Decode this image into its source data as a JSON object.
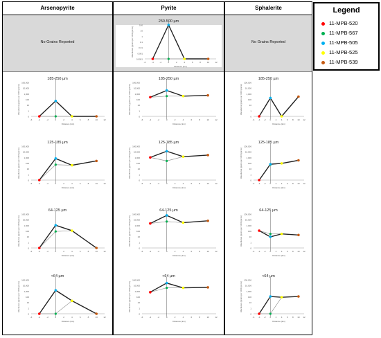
{
  "columns": [
    "Arsenopyrite",
    "Pyrite",
    "Sphalerite"
  ],
  "no_grains_text": "No Grains Reported",
  "legend": {
    "title": "Legend",
    "items": [
      {
        "label": "11-MPB-520",
        "color": "#ff0000"
      },
      {
        "label": "11-MPB-567",
        "color": "#00b050"
      },
      {
        "label": "11-MPB-505",
        "color": "#00b0f0"
      },
      {
        "label": "11-MPB-525",
        "color": "#ffff00"
      },
      {
        "label": "11-MPB-539",
        "color": "#c55a11"
      }
    ]
  },
  "axis": {
    "xlabel": "Distance (km)",
    "ylabel": "Abundance (grains per 1000 grams)",
    "xticks": [
      -6,
      -4,
      -2,
      0,
      2,
      4,
      6,
      8,
      10,
      12
    ],
    "yticks_log": [
      "100,000",
      "10,000",
      "1,000",
      "100",
      "10",
      "1",
      "0"
    ],
    "yticks_top": [
      "100",
      "10",
      "1",
      "0.1",
      "0.01",
      "0.001",
      "0.0001"
    ]
  },
  "chart_data": [
    {
      "mineral": "Pyrite",
      "size": "250-500 µm",
      "type": "line",
      "x": [
        -4,
        0,
        4,
        10
      ],
      "y": [
        0.0001,
        100,
        0.0001,
        0.0001
      ],
      "branch_y": 0.0001,
      "ylim": [
        0.0001,
        100
      ]
    },
    {
      "mineral": "Arsenopyrite",
      "size": "185-250 µm",
      "type": "line",
      "x": [
        -4,
        0,
        4,
        10
      ],
      "y": [
        0,
        100,
        0,
        0
      ],
      "branch_y": 0,
      "ylim": [
        0,
        100000
      ]
    },
    {
      "mineral": "Pyrite",
      "size": "185-250 µm",
      "type": "line",
      "x": [
        -4,
        0,
        4,
        10
      ],
      "y": [
        400,
        5000,
        600,
        800
      ],
      "branch_y": 600,
      "ylim": [
        0,
        100000
      ]
    },
    {
      "mineral": "Sphalerite",
      "size": "185-250 µm",
      "type": "line",
      "x": [
        -4,
        0,
        4,
        10
      ],
      "y": [
        0,
        300,
        0,
        500
      ],
      "branch_y": 300,
      "ylim": [
        0,
        100000
      ]
    },
    {
      "mineral": "Arsenopyrite",
      "size": "125-185 µm",
      "type": "line",
      "x": [
        -4,
        0,
        4,
        10
      ],
      "y": [
        0,
        1000,
        80,
        400
      ],
      "branch_y": 100,
      "ylim": [
        0,
        100000
      ]
    },
    {
      "mineral": "Pyrite",
      "size": "125-185 µm",
      "type": "line",
      "x": [
        -4,
        0,
        4,
        10
      ],
      "y": [
        1500,
        15000,
        2000,
        3500
      ],
      "branch_y": 400,
      "ylim": [
        0,
        100000
      ]
    },
    {
      "mineral": "Sphalerite",
      "size": "125-185 µm",
      "type": "line",
      "x": [
        -4,
        0,
        4,
        10
      ],
      "y": [
        0,
        120,
        160,
        500
      ],
      "branch_y": 100,
      "ylim": [
        0,
        100000
      ]
    },
    {
      "mineral": "Arsenopyrite",
      "size": "64-125 µm",
      "type": "line",
      "x": [
        -4,
        0,
        4,
        10
      ],
      "y": [
        0,
        1500,
        200,
        0
      ],
      "branch_y": 150,
      "ylim": [
        0,
        100000
      ]
    },
    {
      "mineral": "Pyrite",
      "size": "64-125 µm",
      "type": "line",
      "x": [
        -4,
        0,
        4,
        10
      ],
      "y": [
        3000,
        60000,
        4000,
        8000
      ],
      "branch_y": 6000,
      "ylim": [
        0,
        100000
      ]
    },
    {
      "mineral": "Sphalerite",
      "size": "64-125 µm",
      "type": "line",
      "x": [
        -4,
        0,
        4,
        10
      ],
      "y": [
        200,
        20,
        60,
        40
      ],
      "branch_y": 60,
      "ylim": [
        0,
        100000
      ]
    },
    {
      "mineral": "Arsenopyrite",
      "size": "<64 µm",
      "type": "line",
      "x": [
        -4,
        0,
        4,
        10
      ],
      "y": [
        0,
        2000,
        40,
        0
      ],
      "branch_y": 0,
      "ylim": [
        0,
        100000
      ]
    },
    {
      "mineral": "Pyrite",
      "size": "<64 µm",
      "type": "line",
      "x": [
        -4,
        0,
        4,
        10
      ],
      "y": [
        1000,
        30000,
        5000,
        6000
      ],
      "branch_y": 5000,
      "ylim": [
        0,
        100000
      ]
    },
    {
      "mineral": "Sphalerite",
      "size": "<64 µm",
      "type": "line",
      "x": [
        -4,
        0,
        4,
        10
      ],
      "y": [
        0,
        200,
        150,
        200
      ],
      "branch_y": 0,
      "ylim": [
        0,
        100000
      ]
    }
  ]
}
